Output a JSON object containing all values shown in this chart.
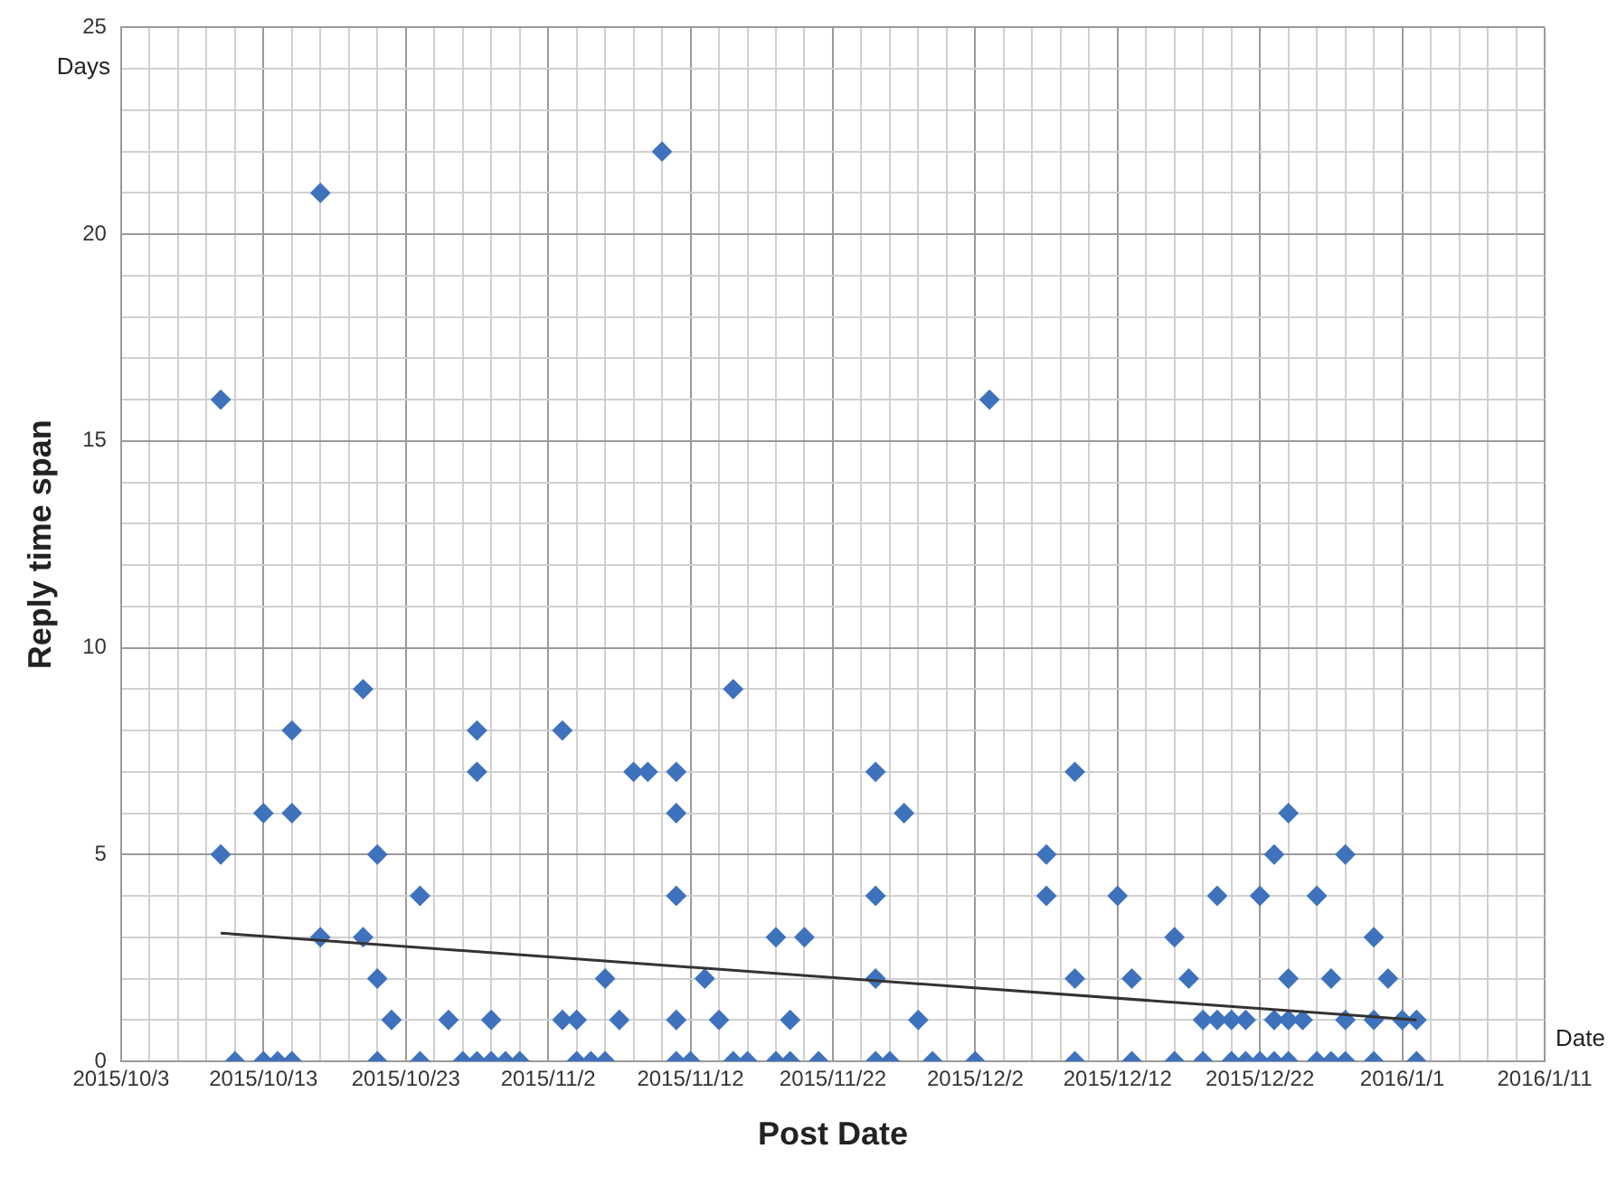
{
  "chart_data": {
    "type": "scatter",
    "xlabel": "Post Date",
    "ylabel": "Reply time span",
    "annotations": [
      "Days",
      "Date"
    ],
    "xlim": [
      "2015-10-03",
      "2016-01-11"
    ],
    "ylim": [
      0,
      25
    ],
    "xticks": [
      {
        "value": "2015-10-03",
        "label": "2015/10/3"
      },
      {
        "value": "2015-10-05",
        "label": null
      },
      {
        "value": "2015-10-07",
        "label": null
      },
      {
        "value": "2015-10-09",
        "label": null
      },
      {
        "value": "2015-10-11",
        "label": null
      },
      {
        "value": "2015-10-13",
        "label": "2015/10/13"
      },
      {
        "value": "2015-10-15",
        "label": null
      },
      {
        "value": "2015-10-17",
        "label": null
      },
      {
        "value": "2015-10-19",
        "label": null
      },
      {
        "value": "2015-10-21",
        "label": null
      },
      {
        "value": "2015-10-23",
        "label": "2015/10/23"
      },
      {
        "value": "2015-10-25",
        "label": null
      },
      {
        "value": "2015-10-27",
        "label": null
      },
      {
        "value": "2015-10-29",
        "label": null
      },
      {
        "value": "2015-10-31",
        "label": null
      },
      {
        "value": "2015-11-02",
        "label": "2015/11/2"
      },
      {
        "value": "2015-11-04",
        "label": null
      },
      {
        "value": "2015-11-06",
        "label": null
      },
      {
        "value": "2015-11-08",
        "label": null
      },
      {
        "value": "2015-11-10",
        "label": null
      },
      {
        "value": "2015-11-12",
        "label": "2015/11/12"
      },
      {
        "value": "2015-11-14",
        "label": null
      },
      {
        "value": "2015-11-16",
        "label": null
      },
      {
        "value": "2015-11-18",
        "label": null
      },
      {
        "value": "2015-11-20",
        "label": null
      },
      {
        "value": "2015-11-22",
        "label": "2015/11/22"
      },
      {
        "value": "2015-11-24",
        "label": null
      },
      {
        "value": "2015-11-26",
        "label": null
      },
      {
        "value": "2015-11-28",
        "label": null
      },
      {
        "value": "2015-11-30",
        "label": null
      },
      {
        "value": "2015-12-02",
        "label": "2015/12/2"
      },
      {
        "value": "2015-12-04",
        "label": null
      },
      {
        "value": "2015-12-06",
        "label": null
      },
      {
        "value": "2015-12-08",
        "label": null
      },
      {
        "value": "2015-12-10",
        "label": null
      },
      {
        "value": "2015-12-12",
        "label": "2015/12/12"
      },
      {
        "value": "2015-12-14",
        "label": null
      },
      {
        "value": "2015-12-16",
        "label": null
      },
      {
        "value": "2015-12-18",
        "label": null
      },
      {
        "value": "2015-12-20",
        "label": null
      },
      {
        "value": "2015-12-22",
        "label": "2015/12/22"
      },
      {
        "value": "2015-12-24",
        "label": null
      },
      {
        "value": "2015-12-26",
        "label": null
      },
      {
        "value": "2015-12-28",
        "label": null
      },
      {
        "value": "2015-12-30",
        "label": null
      },
      {
        "value": "2016-01-01",
        "label": "2016/1/1"
      },
      {
        "value": "2016-01-03",
        "label": null
      },
      {
        "value": "2016-01-05",
        "label": null
      },
      {
        "value": "2016-01-07",
        "label": null
      },
      {
        "value": "2016-01-09",
        "label": null
      },
      {
        "value": "2016-01-11",
        "label": "2016/1/11"
      }
    ],
    "yticks": [
      0,
      {
        "value": 1,
        "label": null
      },
      {
        "value": 2,
        "label": null
      },
      {
        "value": 3,
        "label": null
      },
      {
        "value": 4,
        "label": null
      },
      5,
      {
        "value": 6,
        "label": null
      },
      {
        "value": 7,
        "label": null
      },
      {
        "value": 8,
        "label": null
      },
      {
        "value": 9,
        "label": null
      },
      10,
      {
        "value": 11,
        "label": null
      },
      {
        "value": 12,
        "label": null
      },
      {
        "value": 13,
        "label": null
      },
      {
        "value": 14,
        "label": null
      },
      15,
      {
        "value": 16,
        "label": null
      },
      {
        "value": 17,
        "label": null
      },
      {
        "value": 18,
        "label": null
      },
      {
        "value": 19,
        "label": null
      },
      20,
      {
        "value": 21,
        "label": null
      },
      {
        "value": 22,
        "label": null
      },
      {
        "value": 23,
        "label": null
      },
      {
        "value": 24,
        "label": null
      },
      25
    ],
    "grid": true,
    "legend": false,
    "series": [
      {
        "type": "scatter",
        "color": "#3f72bd",
        "marker": "diamond",
        "x": [
          "2015-10-10",
          "2015-10-10",
          "2015-10-11",
          "2015-10-13",
          "2015-10-13",
          "2015-10-14",
          "2015-10-15",
          "2015-10-15",
          "2015-10-15",
          "2015-10-17",
          "2015-10-17",
          "2015-10-20",
          "2015-10-20",
          "2015-10-21",
          "2015-10-21",
          "2015-10-21",
          "2015-10-22",
          "2015-10-24",
          "2015-10-24",
          "2015-10-26",
          "2015-10-27",
          "2015-10-28",
          "2015-10-28",
          "2015-10-28",
          "2015-10-29",
          "2015-10-29",
          "2015-10-30",
          "2015-10-31",
          "2015-11-03",
          "2015-11-03",
          "2015-11-04",
          "2015-11-04",
          "2015-11-05",
          "2015-11-06",
          "2015-11-06",
          "2015-11-07",
          "2015-11-08",
          "2015-11-09",
          "2015-11-10",
          "2015-11-11",
          "2015-11-11",
          "2015-11-11",
          "2015-11-11",
          "2015-11-11",
          "2015-11-12",
          "2015-11-13",
          "2015-11-14",
          "2015-11-15",
          "2015-11-15",
          "2015-11-16",
          "2015-11-18",
          "2015-11-18",
          "2015-11-19",
          "2015-11-19",
          "2015-11-20",
          "2015-11-21",
          "2015-11-25",
          "2015-11-25",
          "2015-11-25",
          "2015-11-25",
          "2015-11-26",
          "2015-11-27",
          "2015-11-28",
          "2015-11-29",
          "2015-12-02",
          "2015-12-03",
          "2015-12-07",
          "2015-12-07",
          "2015-12-09",
          "2015-12-09",
          "2015-12-09",
          "2015-12-12",
          "2015-12-13",
          "2015-12-13",
          "2015-12-16",
          "2015-12-16",
          "2015-12-17",
          "2015-12-18",
          "2015-12-18",
          "2015-12-19",
          "2015-12-19",
          "2015-12-20",
          "2015-12-20",
          "2015-12-21",
          "2015-12-21",
          "2015-12-22",
          "2015-12-22",
          "2015-12-23",
          "2015-12-23",
          "2015-12-23",
          "2015-12-24",
          "2015-12-24",
          "2015-12-24",
          "2015-12-24",
          "2015-12-25",
          "2015-12-26",
          "2015-12-26",
          "2015-12-27",
          "2015-12-27",
          "2015-12-28",
          "2015-12-28",
          "2015-12-28",
          "2015-12-30",
          "2015-12-30",
          "2015-12-30",
          "2015-12-31",
          "2016-01-01",
          "2016-01-02",
          "2016-01-02"
        ],
        "values": [
          16,
          5,
          0,
          6,
          0,
          0,
          8,
          6,
          0,
          21,
          3,
          9,
          3,
          5,
          2,
          0,
          1,
          4,
          0,
          1,
          0,
          8,
          7,
          0,
          1,
          0,
          0,
          0,
          8,
          1,
          1,
          0,
          0,
          2,
          0,
          1,
          7,
          7,
          22,
          7,
          6,
          4,
          1,
          0,
          0,
          2,
          1,
          9,
          0,
          0,
          3,
          0,
          1,
          0,
          3,
          0,
          7,
          4,
          2,
          0,
          0,
          6,
          1,
          0,
          0,
          16,
          5,
          4,
          7,
          2,
          0,
          4,
          2,
          0,
          3,
          0,
          2,
          1,
          0,
          4,
          1,
          1,
          0,
          1,
          0,
          4,
          0,
          5,
          1,
          0,
          6,
          2,
          1,
          0,
          1,
          4,
          0,
          2,
          0,
          5,
          1,
          0,
          3,
          1,
          0,
          2,
          1,
          1,
          0
        ]
      },
      {
        "type": "line",
        "color": "#333333",
        "marker": "none",
        "line_style": "solid",
        "x": [
          "2015-10-10",
          "2016-01-02"
        ],
        "values": [
          3.1,
          1.0
        ]
      }
    ]
  }
}
